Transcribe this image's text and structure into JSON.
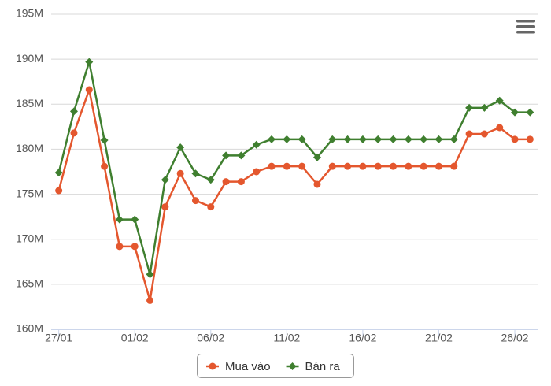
{
  "chart_data": {
    "type": "line",
    "categories": [
      "27/01",
      null,
      null,
      null,
      null,
      "01/02",
      null,
      null,
      null,
      null,
      "06/02",
      null,
      null,
      null,
      null,
      "11/02",
      null,
      null,
      null,
      null,
      "16/02",
      null,
      null,
      null,
      null,
      "21/02",
      null,
      null,
      null,
      null,
      "26/02",
      null
    ],
    "series": [
      {
        "name": "Mua vào",
        "color": "#e4572e",
        "marker": "circle",
        "values": [
          175.4,
          181.8,
          186.6,
          178.1,
          169.2,
          169.2,
          163.2,
          173.6,
          177.3,
          174.3,
          173.6,
          176.4,
          176.4,
          177.5,
          178.1,
          178.1,
          178.1,
          176.1,
          178.1,
          178.1,
          178.1,
          178.1,
          178.1,
          178.1,
          178.1,
          178.1,
          178.1,
          181.7,
          181.7,
          182.4,
          181.1,
          181.1
        ]
      },
      {
        "name": "Bán ra",
        "color": "#3f7f2f",
        "marker": "diamond",
        "values": [
          177.4,
          184.2,
          189.7,
          181.0,
          172.2,
          172.2,
          166.1,
          176.6,
          180.2,
          177.3,
          176.6,
          179.3,
          179.3,
          180.5,
          181.1,
          181.1,
          181.1,
          179.1,
          181.1,
          181.1,
          181.1,
          181.1,
          181.1,
          181.1,
          181.1,
          181.1,
          181.1,
          184.6,
          184.6,
          185.4,
          184.1,
          184.1
        ]
      }
    ],
    "ylim": [
      160,
      195
    ],
    "yticks": [
      {
        "value": 160,
        "label": "160M"
      },
      {
        "value": 165,
        "label": "165M"
      },
      {
        "value": 170,
        "label": "170M"
      },
      {
        "value": 175,
        "label": "175M"
      },
      {
        "value": 180,
        "label": "180M"
      },
      {
        "value": 185,
        "label": "185M"
      },
      {
        "value": 190,
        "label": "190M"
      },
      {
        "value": 195,
        "label": "195M"
      }
    ],
    "grid": true,
    "legend": "bottom"
  }
}
